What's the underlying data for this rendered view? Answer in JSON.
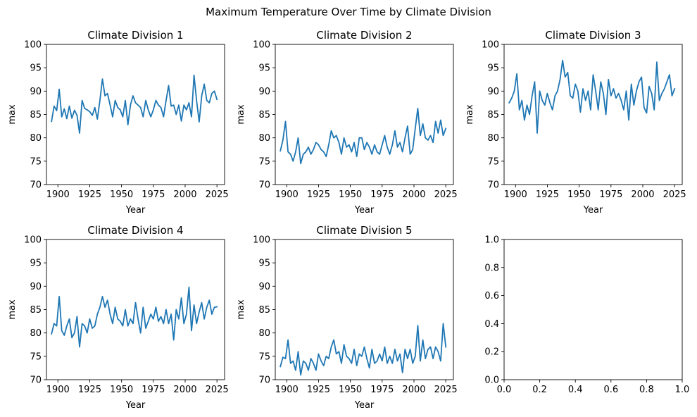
{
  "chart_data": {
    "type": "line",
    "suptitle": "Maximum Temperature Over Time by Climate Division",
    "xlabel": "Year",
    "ylabel": "max",
    "xlim": [
      1891,
      2031
    ],
    "xticks": [
      1900,
      1925,
      1950,
      1975,
      2000,
      2025
    ],
    "ylim": [
      70,
      100
    ],
    "yticks": [
      70,
      75,
      80,
      85,
      90,
      95,
      100
    ],
    "line_color": "#1f77b4",
    "x": [
      1895,
      1897,
      1899,
      1901,
      1903,
      1905,
      1907,
      1909,
      1911,
      1913,
      1915,
      1917,
      1919,
      1921,
      1923,
      1925,
      1927,
      1929,
      1931,
      1933,
      1935,
      1937,
      1939,
      1941,
      1943,
      1945,
      1947,
      1949,
      1951,
      1953,
      1955,
      1957,
      1959,
      1961,
      1963,
      1965,
      1967,
      1969,
      1971,
      1973,
      1975,
      1977,
      1979,
      1981,
      1983,
      1985,
      1987,
      1989,
      1991,
      1993,
      1995,
      1997,
      1999,
      2001,
      2003,
      2005,
      2007,
      2009,
      2011,
      2013,
      2015,
      2017,
      2019,
      2021,
      2023,
      2025
    ],
    "panels": [
      {
        "title": "Climate Division 1",
        "values": [
          83.5,
          86.8,
          85.8,
          90.4,
          84.5,
          86.2,
          84.1,
          86.8,
          84.2,
          85.9,
          84.8,
          81.0,
          88.0,
          86.3,
          86.0,
          85.6,
          84.8,
          86.5,
          84.0,
          88.0,
          92.6,
          89.0,
          89.5,
          87.0,
          84.5,
          88.0,
          86.5,
          86.0,
          84.5,
          88.0,
          82.8,
          87.0,
          89.0,
          87.5,
          87.0,
          86.5,
          84.5,
          88.0,
          86.0,
          84.5,
          86.0,
          88.0,
          87.0,
          86.5,
          84.5,
          88.0,
          91.2,
          86.8,
          87.0,
          85.0,
          87.0,
          83.6,
          87.0,
          86.0,
          87.5,
          84.5,
          93.4,
          88.0,
          83.4,
          89.0,
          91.5,
          88.0,
          87.5,
          89.5,
          90.0,
          88.2
        ]
      },
      {
        "title": "Climate Division 2",
        "values": [
          77.2,
          79.5,
          83.5,
          77.0,
          76.5,
          75.0,
          77.0,
          80.0,
          74.5,
          76.5,
          77.0,
          78.0,
          76.5,
          77.5,
          79.0,
          78.5,
          77.5,
          77.0,
          76.0,
          78.5,
          81.5,
          80.0,
          80.5,
          79.0,
          76.5,
          80.0,
          78.0,
          78.5,
          77.0,
          79.0,
          76.0,
          80.0,
          80.0,
          77.5,
          79.0,
          78.0,
          76.5,
          78.5,
          77.0,
          76.5,
          78.5,
          80.5,
          78.0,
          76.5,
          78.5,
          81.5,
          78.0,
          79.0,
          77.0,
          80.0,
          82.5,
          76.5,
          77.5,
          82.0,
          86.3,
          80.5,
          83.0,
          80.0,
          79.5,
          80.5,
          79.0,
          83.5,
          81.0,
          83.8,
          80.5,
          82.0
        ]
      },
      {
        "title": "Climate Division 3",
        "values": [
          87.5,
          88.5,
          90.0,
          93.7,
          86.0,
          88.0,
          83.8,
          87.0,
          85.0,
          89.0,
          92.0,
          81.0,
          90.0,
          88.0,
          87.0,
          89.5,
          87.5,
          86.0,
          89.0,
          90.0,
          92.5,
          96.6,
          93.0,
          94.0,
          89.0,
          88.5,
          91.5,
          90.0,
          85.5,
          90.5,
          88.0,
          90.0,
          86.0,
          93.5,
          90.0,
          86.0,
          92.0,
          89.5,
          85.0,
          92.5,
          89.0,
          90.5,
          88.5,
          89.5,
          88.0,
          86.0,
          90.0,
          83.8,
          91.5,
          87.0,
          90.0,
          92.0,
          93.0,
          86.5,
          85.3,
          91.0,
          89.5,
          86.0,
          96.2,
          88.0,
          89.5,
          90.5,
          92.0,
          93.5,
          89.0,
          90.5
        ]
      },
      {
        "title": "Climate Division 4",
        "values": [
          79.8,
          82.0,
          81.5,
          87.8,
          80.5,
          79.5,
          81.5,
          83.0,
          79.0,
          80.0,
          83.5,
          77.0,
          82.0,
          81.5,
          80.0,
          83.0,
          81.0,
          81.5,
          84.0,
          85.5,
          87.8,
          85.5,
          87.0,
          84.0,
          82.0,
          85.5,
          83.0,
          82.5,
          81.5,
          85.0,
          81.5,
          83.0,
          82.0,
          86.5,
          83.0,
          80.0,
          85.5,
          81.0,
          82.5,
          84.0,
          83.0,
          85.5,
          82.5,
          83.5,
          82.0,
          85.0,
          82.0,
          84.0,
          78.5,
          85.0,
          83.0,
          87.5,
          82.0,
          84.0,
          89.8,
          80.5,
          86.0,
          82.0,
          84.5,
          86.5,
          83.0,
          85.5,
          87.0,
          84.0,
          85.5,
          85.6
        ]
      },
      {
        "title": "Climate Division 5",
        "values": [
          72.8,
          74.8,
          74.5,
          78.5,
          73.5,
          74.0,
          72.0,
          76.0,
          71.0,
          74.0,
          73.5,
          72.0,
          74.5,
          73.5,
          72.0,
          75.5,
          74.0,
          73.0,
          75.0,
          74.5,
          77.0,
          78.5,
          75.5,
          76.0,
          73.5,
          77.5,
          75.0,
          74.5,
          73.5,
          76.5,
          73.0,
          75.5,
          75.0,
          77.0,
          74.5,
          72.5,
          76.5,
          73.5,
          74.0,
          75.5,
          74.0,
          77.0,
          73.5,
          75.0,
          73.5,
          76.5,
          74.0,
          75.5,
          71.5,
          76.5,
          74.5,
          76.5,
          73.5,
          75.0,
          81.6,
          74.0,
          78.5,
          74.5,
          76.5,
          77.0,
          74.5,
          77.0,
          76.0,
          74.0,
          82.0,
          77.0
        ]
      }
    ],
    "empty_axes": {
      "xlim": [
        0,
        1
      ],
      "ylim": [
        0,
        1
      ],
      "xticks": [
        0.0,
        0.2,
        0.4,
        0.6,
        0.8,
        1.0
      ],
      "yticks": [
        0.0,
        0.2,
        0.4,
        0.6,
        0.8,
        1.0
      ],
      "xtick_labels": [
        "0.0",
        "0.2",
        "0.4",
        "0.6",
        "0.8",
        "1.0"
      ],
      "ytick_labels": [
        "0.0",
        "0.2",
        "0.4",
        "0.6",
        "0.8",
        "1.0"
      ]
    }
  }
}
